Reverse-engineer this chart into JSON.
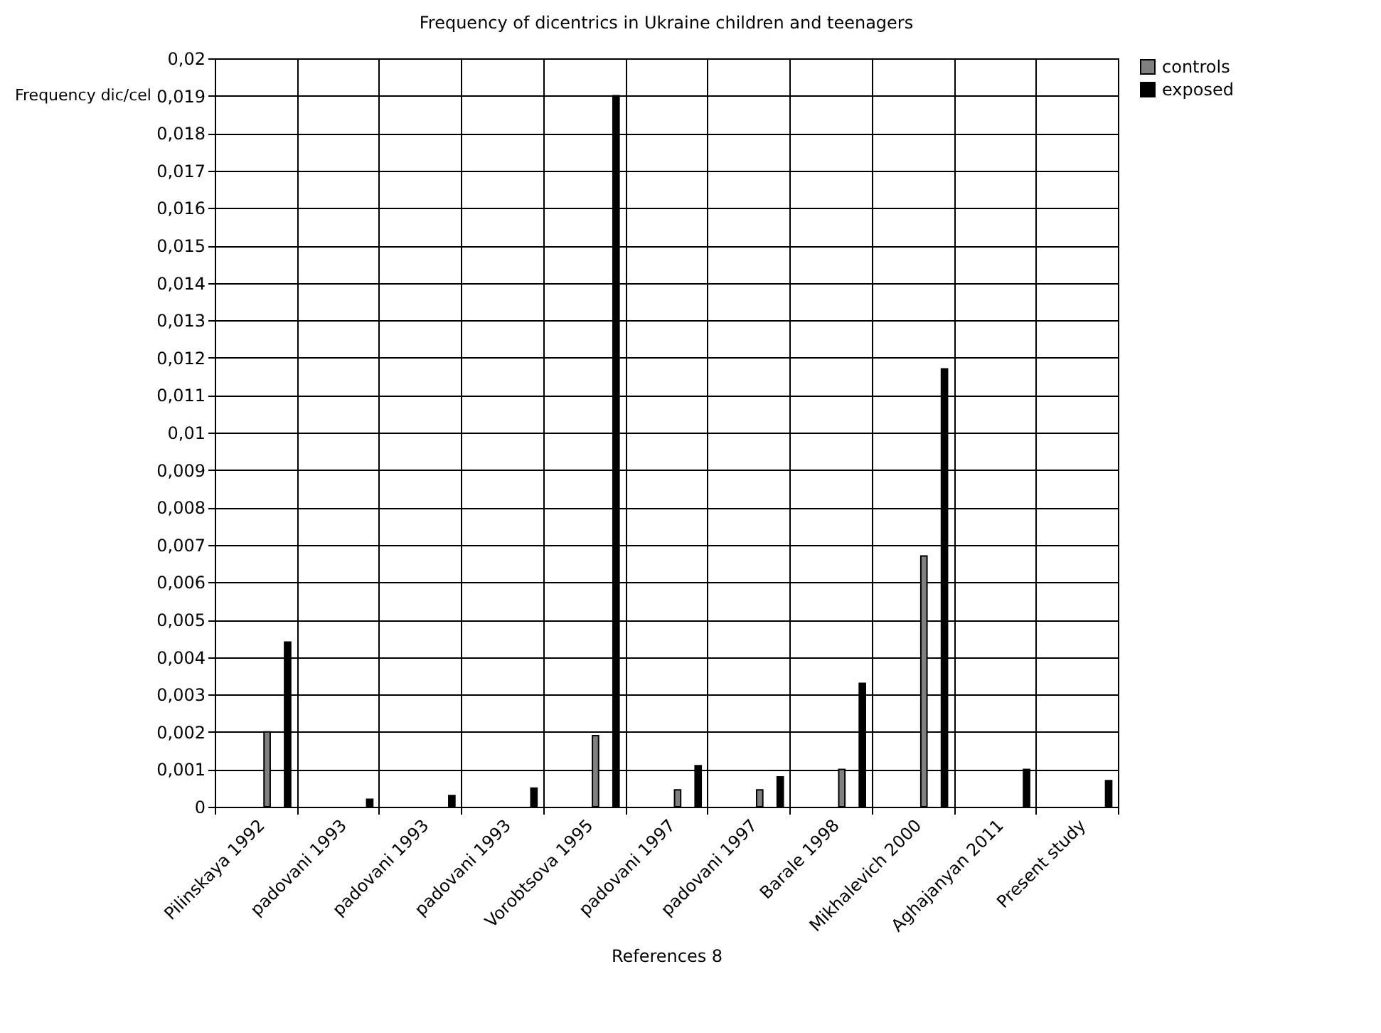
{
  "chart_data": {
    "type": "bar",
    "title": "Frequency of dicentrics in Ukraine children and teenagers",
    "xlabel": "References 8",
    "ylabel": "Frequency dic/cel",
    "categories": [
      "Pilinskaya 1992",
      "padovani 1993",
      "padovani 1993",
      "padovani 1993",
      "Vorobtsova 1995",
      "padovani 1997",
      "padovani 1997",
      "Barale 1998",
      "Mikhalevich 2000",
      "Aghajanyan 2011",
      "Present study"
    ],
    "series": [
      {
        "name": "controls",
        "color": "#808080",
        "values": [
          0.002,
          null,
          null,
          null,
          0.0019,
          0.00045,
          0.00045,
          0.001,
          0.0067,
          null,
          null
        ]
      },
      {
        "name": "exposed",
        "color": "#000000",
        "values": [
          0.0044,
          0.0002,
          0.0003,
          0.0005,
          0.019,
          0.0011,
          0.0008,
          0.0033,
          0.0117,
          0.001,
          0.0007
        ]
      }
    ],
    "ylim": [
      0,
      0.02
    ],
    "yticks": [
      0,
      {
        "value": 0.001,
        "label": "0,001"
      },
      {
        "value": 0.002,
        "label": "0,002"
      },
      {
        "value": 0.003,
        "label": "0,003"
      },
      {
        "value": 0.004,
        "label": "0,004"
      },
      {
        "value": 0.005,
        "label": "0,005"
      },
      {
        "value": 0.006,
        "label": "0,006"
      },
      {
        "value": 0.007,
        "label": "0,007"
      },
      {
        "value": 0.008,
        "label": "0,008"
      },
      {
        "value": 0.009,
        "label": "0,009"
      },
      {
        "value": 0.01,
        "label": "0,01"
      },
      {
        "value": 0.011,
        "label": "0,011"
      },
      {
        "value": 0.012,
        "label": "0,012"
      },
      {
        "value": 0.013,
        "label": "0,013"
      },
      {
        "value": 0.014,
        "label": "0,014"
      },
      {
        "value": 0.015,
        "label": "0,015"
      },
      {
        "value": 0.016,
        "label": "0,016"
      },
      {
        "value": 0.017,
        "label": "0,017"
      },
      {
        "value": 0.018,
        "label": "0,018"
      },
      {
        "value": 0.019,
        "label": "0,019"
      },
      {
        "value": 0.02,
        "label": "0,02"
      }
    ],
    "grid": true,
    "legend": "right"
  }
}
